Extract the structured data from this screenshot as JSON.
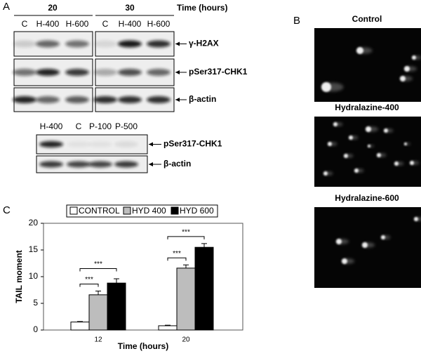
{
  "panel_a": {
    "label": "A",
    "top_blot": {
      "time_groups": [
        "20",
        "30"
      ],
      "time_label": "Time (hours)",
      "lanes": [
        "C",
        "H-400",
        "H-600",
        "C",
        "H-400",
        "H-600"
      ],
      "bands": [
        "γ-H2AX",
        "pSer317-CHK1",
        "β-actin"
      ]
    },
    "bottom_blot": {
      "lanes": [
        "H-400",
        "C",
        "P-100",
        "P-500"
      ],
      "bands": [
        "pSer317-CHK1",
        "β-actin"
      ]
    }
  },
  "panel_b": {
    "label": "B",
    "images": [
      "Control",
      "Hydralazine-400",
      "Hydralazine-600"
    ]
  },
  "chart_data": {
    "type": "bar",
    "panel_label": "C",
    "xlabel": "Time (hours)",
    "ylabel": "TAIL moment",
    "categories": [
      "12",
      "20"
    ],
    "series": [
      {
        "name": "CONTROL",
        "color": "#ffffff",
        "values": [
          1.5,
          0.8
        ],
        "errors": [
          0.1,
          0.1
        ]
      },
      {
        "name": "HYD 400",
        "color": "#bdbdbd",
        "values": [
          6.6,
          11.6
        ],
        "errors": [
          0.7,
          0.6
        ]
      },
      {
        "name": "HYD 600",
        "color": "#000000",
        "values": [
          8.8,
          15.5
        ],
        "errors": [
          0.8,
          0.7
        ]
      }
    ],
    "annotations": [
      "***",
      "***",
      "***",
      "***"
    ],
    "ylim": [
      0,
      20
    ],
    "yticks": [
      0,
      5,
      10,
      15,
      20
    ]
  }
}
